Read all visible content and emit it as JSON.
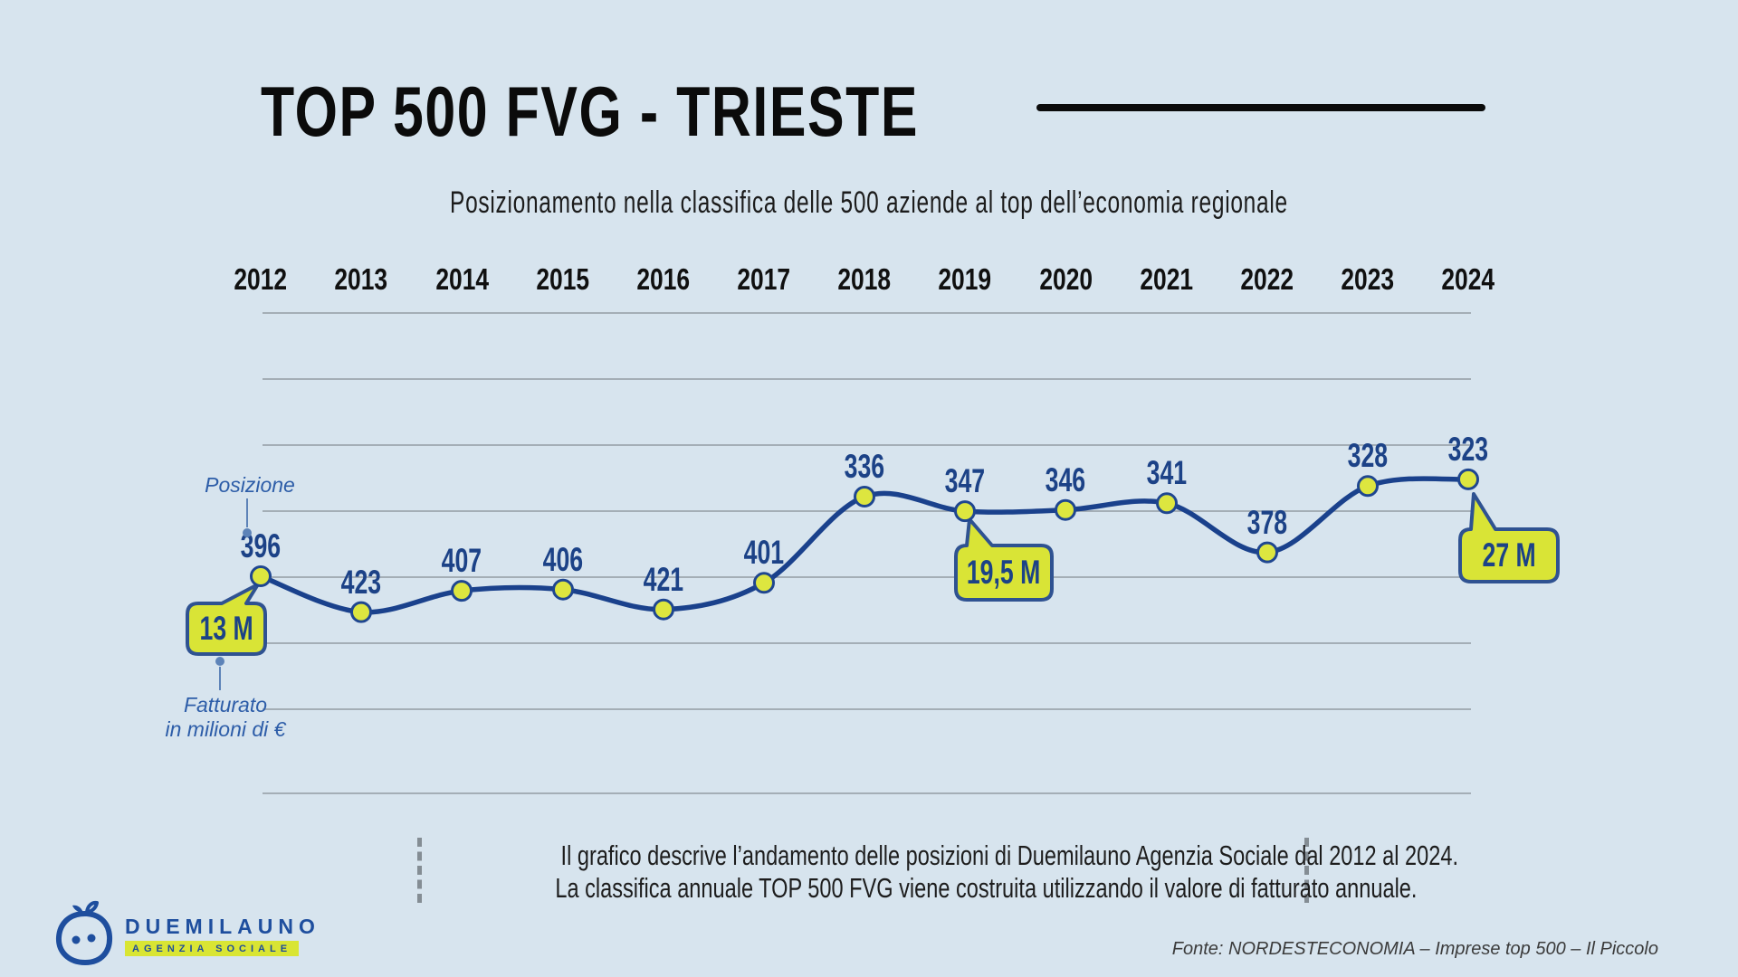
{
  "header": {
    "title": "TOP 500 FVG - TRIESTE",
    "subtitle": "Posizionamento nella classifica delle 500 aziende al top dell’economia regionale"
  },
  "chart_data": {
    "type": "line",
    "title": "TOP 500 FVG - TRIESTE",
    "categories": [
      "2012",
      "2013",
      "2014",
      "2015",
      "2016",
      "2017",
      "2018",
      "2019",
      "2020",
      "2021",
      "2022",
      "2023",
      "2024"
    ],
    "series": [
      {
        "name": "Posizione",
        "values": [
          396,
          423,
          407,
          406,
          421,
          401,
          336,
          347,
          346,
          341,
          378,
          328,
          323
        ]
      }
    ],
    "y_axis": {
      "label": "Posizione",
      "inverted": true,
      "range_hint": [
        323,
        423
      ],
      "ticks_visible": false
    },
    "x_axis_position": "top",
    "grid": true,
    "legend_position": "none",
    "pointers": {
      "posizione_label": "Posizione",
      "fatturato_label_line1": "Fatturato",
      "fatturato_label_line2": "in milioni di €"
    },
    "callouts": [
      {
        "label": "13 M",
        "year": "2012"
      },
      {
        "label": "19,5 M",
        "year": "2019"
      },
      {
        "label": "27 M",
        "year": "2024"
      }
    ]
  },
  "footer": {
    "note_line1": "Il grafico descrive l’andamento delle posizioni di Duemilauno Agenzia Sociale dal 2012 al 2024.",
    "note_line2": "La classifica annuale TOP 500 FVG viene costruita utilizzando il valore di fatturato annuale.",
    "source": "Fonte: NORDESTECONOMIA – Imprese top 500 – Il Piccolo",
    "logo": {
      "brand": "DUEMILAUNO",
      "tagline": "AGENZIA SOCIALE"
    }
  },
  "colors": {
    "background": "#d7e4ee",
    "line": "#1a418c",
    "marker_fill": "#dde63f",
    "marker_stroke": "#1f4690",
    "callout_bg": "#d9e436",
    "callout_border": "#2f5291",
    "grid": "#939ca4",
    "label_blue": "#1c4287",
    "pointer_blue": "#5d83b8"
  }
}
